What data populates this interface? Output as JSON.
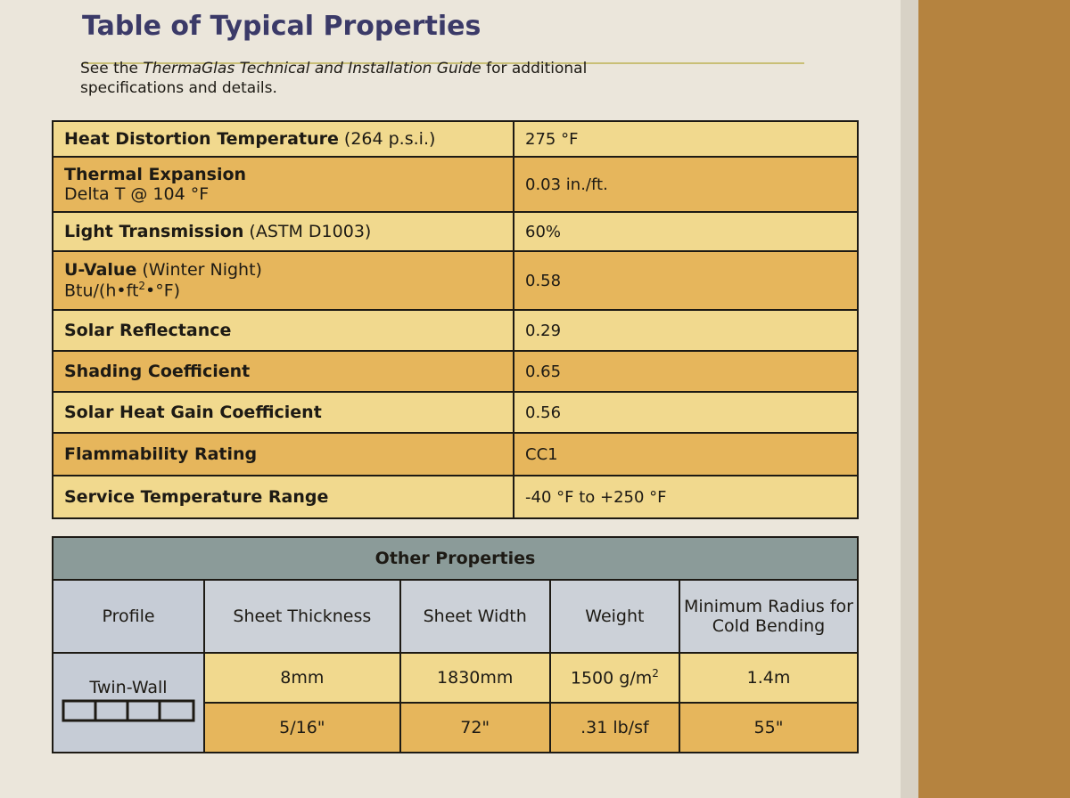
{
  "header": {
    "title": "Table of Typical Properties",
    "intro": [
      "See the ",
      "ThermaGlas Technical and Installation Guide",
      " for additional specifications and details."
    ]
  },
  "properties": [
    {
      "name": "Heat Distortion Temperature",
      "note": "(264 p.s.i.)",
      "value": "275 °F"
    },
    {
      "name": "Thermal Expansion",
      "detail": "Delta T @ 104 °F",
      "value": "0.03 in./ft."
    },
    {
      "name": "Light Transmission",
      "note": "(ASTM D1003)",
      "value": "60%"
    },
    {
      "name": "U-Value",
      "note": "(Winter Night)",
      "detail": [
        "Btu/(h•ft",
        "2",
        "•°F)"
      ],
      "value": "0.58"
    },
    {
      "name": "Solar Reflectance",
      "value": "0.29"
    },
    {
      "name": "Shading Coefficient",
      "value": "0.65"
    },
    {
      "name": "Solar Heat Gain Coefficient",
      "value": "0.56"
    },
    {
      "name": "Flammability Rating",
      "value": "CC1"
    },
    {
      "name": "Service Temperature Range",
      "value": "-40 °F to +250 °F"
    }
  ],
  "other_properties": {
    "title": "Other Properties",
    "columns": [
      "Profile",
      "Sheet Thickness",
      "Sheet Width",
      "Weight",
      "Minimum Radius for Cold Bending"
    ],
    "profile": "Twin-Wall",
    "rows": [
      [
        "8mm",
        "1830mm",
        [
          "1500 g/m",
          "2"
        ],
        "1.4m"
      ],
      [
        "5/16\"",
        "72\"",
        ".31 lb/sf",
        "55\""
      ]
    ]
  }
}
